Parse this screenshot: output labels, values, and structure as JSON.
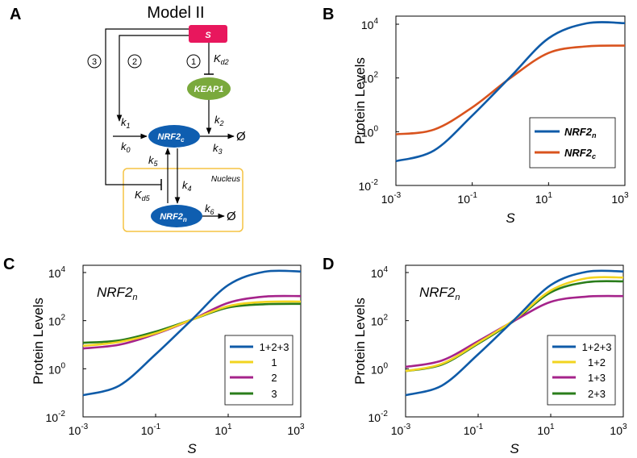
{
  "panel_letters": {
    "A": "A",
    "B": "B",
    "C": "C",
    "D": "D"
  },
  "diagram": {
    "title": "Model II",
    "nodes": {
      "S": {
        "label": "S",
        "color": "#e8175d"
      },
      "KEAP1": {
        "label": "KEAP1",
        "color": "#7aa93c"
      },
      "NRF2c": {
        "label": "NRF2",
        "sub": "c",
        "color": "#0f5eb0"
      },
      "NRF2n": {
        "label": "NRF2",
        "sub": "n",
        "color": "#0f5eb0"
      }
    },
    "circled_numbers": [
      "1",
      "2",
      "3"
    ],
    "rates": {
      "Kd2": {
        "main": "K",
        "sub": "d2"
      },
      "Kd5": {
        "main": "K",
        "sub": "d5"
      },
      "k0": {
        "main": "k",
        "sub": "0"
      },
      "k1": {
        "main": "k",
        "sub": "1"
      },
      "k2": {
        "main": "k",
        "sub": "2"
      },
      "k3": {
        "main": "k",
        "sub": "3"
      },
      "k4": {
        "main": "k",
        "sub": "4"
      },
      "k5": {
        "main": "k",
        "sub": "5"
      },
      "k6": {
        "main": "k",
        "sub": "6"
      }
    },
    "null_symbol": "Ø",
    "nucleus_label": "Nucleus",
    "nucleus_color": "#f5c343"
  },
  "chart_data": [
    {
      "id": "B",
      "type": "line",
      "xscale": "log",
      "yscale": "log",
      "xlim": [
        0.001,
        1000
      ],
      "ylim": [
        0.01,
        20000
      ],
      "xticks": [
        0.001,
        0.1,
        10,
        1000
      ],
      "xtick_mant": [
        "10",
        "10",
        "10",
        "10"
      ],
      "xtick_exp": [
        "-3",
        "-1",
        "1",
        "3"
      ],
      "yticks": [
        0.01,
        1,
        100,
        10000
      ],
      "ytick_mant": [
        "10",
        "10",
        "10",
        "10"
      ],
      "ytick_exp": [
        "-2",
        "0",
        "2",
        "4"
      ],
      "xlabel": "S",
      "ylabel": "Protein Levels",
      "inner_label": "",
      "legend_position": "bottom-right",
      "series": [
        {
          "name": "NRF2",
          "sub": "n",
          "color": "#0f5ba8",
          "x": [
            0.001,
            0.01,
            0.1,
            1,
            10,
            100,
            1000
          ],
          "y": [
            0.08,
            0.2,
            4,
            110,
            3000,
            10800,
            11000
          ]
        },
        {
          "name": "NRF2",
          "sub": "c",
          "color": "#d9531e",
          "x": [
            0.001,
            0.01,
            0.1,
            1,
            10,
            100,
            1000
          ],
          "y": [
            0.8,
            1.2,
            8,
            100,
            850,
            1500,
            1600
          ]
        }
      ]
    },
    {
      "id": "C",
      "type": "line",
      "xscale": "log",
      "yscale": "log",
      "xlim": [
        0.001,
        1000
      ],
      "ylim": [
        0.01,
        20000
      ],
      "xticks": [
        0.001,
        0.1,
        10,
        1000
      ],
      "xtick_mant": [
        "10",
        "10",
        "10",
        "10"
      ],
      "xtick_exp": [
        "-3",
        "-1",
        "1",
        "3"
      ],
      "yticks": [
        0.01,
        1,
        100,
        10000
      ],
      "ytick_mant": [
        "10",
        "10",
        "10",
        "10"
      ],
      "ytick_exp": [
        "-2",
        "0",
        "2",
        "4"
      ],
      "xlabel": "S",
      "ylabel": "Protein Levels",
      "inner_label": "NRF2",
      "inner_label_sub": "n",
      "legend_position": "bottom-right",
      "series": [
        {
          "name": "1+2+3",
          "color": "#0f5ba8",
          "x": [
            0.001,
            0.01,
            0.1,
            1,
            10,
            100,
            1000
          ],
          "y": [
            0.08,
            0.2,
            4,
            110,
            3000,
            10800,
            11000
          ]
        },
        {
          "name": "1",
          "color": "#f2d41f",
          "x": [
            0.001,
            0.01,
            0.1,
            1,
            10,
            100,
            1000
          ],
          "y": [
            9,
            13,
            30,
            110,
            400,
            600,
            620
          ]
        },
        {
          "name": "2",
          "color": "#a5238b",
          "x": [
            0.001,
            0.01,
            0.1,
            1,
            10,
            100,
            1000
          ],
          "y": [
            7,
            10,
            28,
            110,
            550,
            1000,
            1050
          ]
        },
        {
          "name": "3",
          "color": "#2a7d1b",
          "x": [
            0.001,
            0.01,
            0.1,
            1,
            10,
            100,
            1000
          ],
          "y": [
            12,
            15,
            35,
            110,
            350,
            480,
            500
          ]
        }
      ]
    },
    {
      "id": "D",
      "type": "line",
      "xscale": "log",
      "yscale": "log",
      "xlim": [
        0.001,
        1000
      ],
      "ylim": [
        0.01,
        20000
      ],
      "xticks": [
        0.001,
        0.1,
        10,
        1000
      ],
      "xtick_mant": [
        "10",
        "10",
        "10",
        "10"
      ],
      "xtick_exp": [
        "-3",
        "-1",
        "1",
        "3"
      ],
      "yticks": [
        0.01,
        1,
        100,
        10000
      ],
      "ytick_mant": [
        "10",
        "10",
        "10",
        "10"
      ],
      "ytick_exp": [
        "-2",
        "0",
        "2",
        "4"
      ],
      "xlabel": "S",
      "ylabel": "Protein Levels",
      "inner_label": "NRF2",
      "inner_label_sub": "n",
      "legend_position": "bottom-right",
      "series": [
        {
          "name": "1+2+3",
          "color": "#0f5ba8",
          "x": [
            0.001,
            0.01,
            0.1,
            1,
            10,
            100,
            1000
          ],
          "y": [
            0.08,
            0.2,
            4,
            110,
            3000,
            10800,
            11000
          ]
        },
        {
          "name": "1+2",
          "color": "#f2d41f",
          "x": [
            0.001,
            0.01,
            0.1,
            1,
            10,
            100,
            1000
          ],
          "y": [
            0.8,
            1.6,
            12,
            110,
            1800,
            5800,
            6200
          ]
        },
        {
          "name": "1+3",
          "color": "#a5238b",
          "x": [
            0.001,
            0.01,
            0.1,
            1,
            10,
            100,
            1000
          ],
          "y": [
            1.2,
            2.2,
            14,
            100,
            600,
            1000,
            1050
          ]
        },
        {
          "name": "2+3",
          "color": "#2a7d1b",
          "x": [
            0.001,
            0.01,
            0.1,
            1,
            10,
            100,
            1000
          ],
          "y": [
            0.8,
            1.5,
            11,
            100,
            1500,
            4000,
            4300
          ]
        }
      ]
    }
  ]
}
